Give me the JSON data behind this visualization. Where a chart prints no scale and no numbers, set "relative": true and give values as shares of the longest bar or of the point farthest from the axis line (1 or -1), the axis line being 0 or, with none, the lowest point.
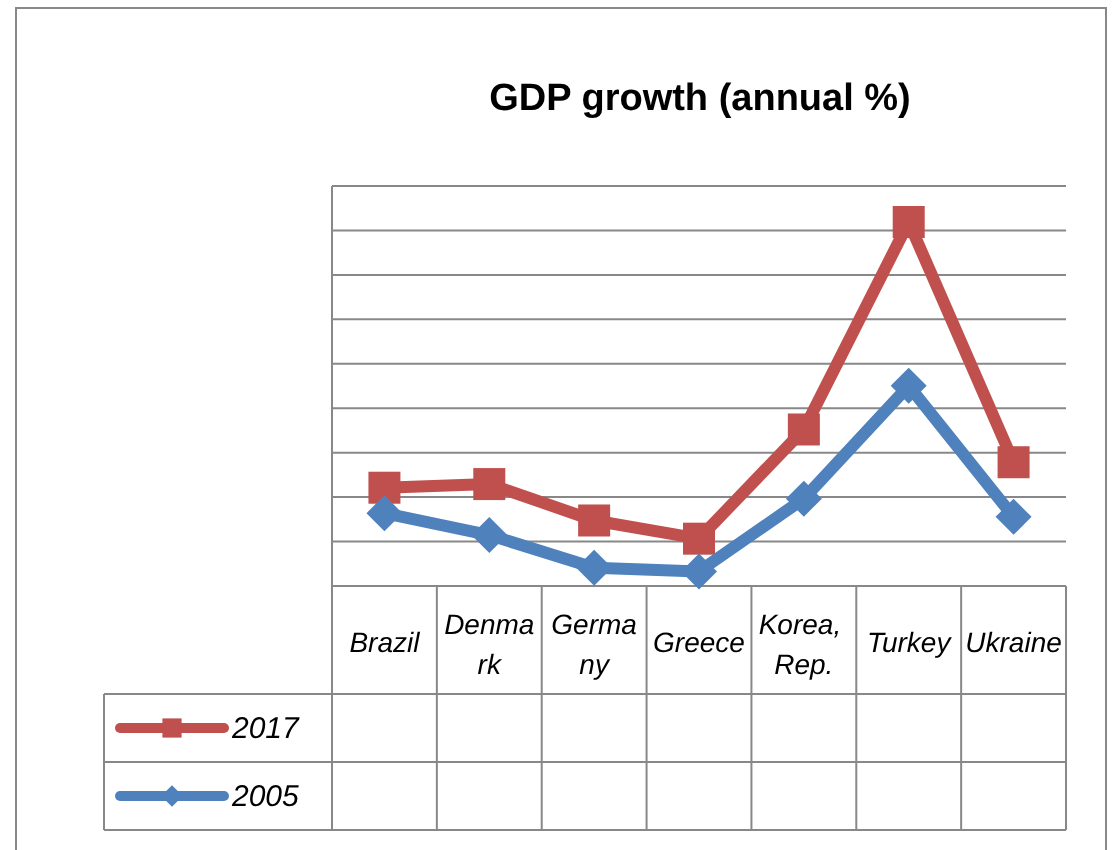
{
  "chart_data": {
    "type": "line",
    "title": "GDP growth (annual %)",
    "relative": true,
    "grid": true,
    "legend": "left",
    "line_style": "solid",
    "categories": [
      "Brazil",
      "Denmark",
      "Germany",
      "Greece",
      "Korea, Rep.",
      "Turkey",
      "Ukraine"
    ],
    "series": [
      {
        "name": "2017",
        "color": "#c0504d",
        "marker": "square",
        "values": [
          0.27,
          0.28,
          0.18,
          0.13,
          0.43,
          1,
          0.34
        ]
      },
      {
        "name": "2005",
        "color": "#4f81bd",
        "marker": "diamond",
        "values": [
          0.2,
          0.14,
          0.05,
          0.04,
          0.24,
          0.55,
          0.19
        ]
      }
    ]
  }
}
